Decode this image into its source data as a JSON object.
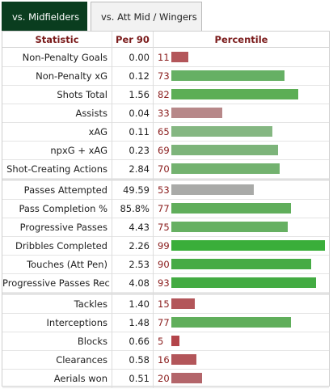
{
  "tabs": [
    {
      "label": "vs. Midfielders",
      "active": true
    },
    {
      "label": "vs. Att Mid / Wingers",
      "active": false
    }
  ],
  "headers": {
    "statistic": "Statistic",
    "per90": "Per 90",
    "percentile": "Percentile"
  },
  "colors": {
    "tab_active": "#0a3d1f",
    "header_text": "#7a1a1a",
    "percentile_text": "#8a1c1c"
  },
  "groups": [
    [
      {
        "stat": "Non-Penalty Goals",
        "per90": "0.00",
        "percentile": "11",
        "pct_value": 11,
        "color": "#b3565a"
      },
      {
        "stat": "Non-Penalty xG",
        "per90": "0.12",
        "percentile": "73",
        "pct_value": 73,
        "color": "#66b064"
      },
      {
        "stat": "Shots Total",
        "per90": "1.56",
        "percentile": "82",
        "pct_value": 82,
        "color": "#5cae55"
      },
      {
        "stat": "Assists",
        "per90": "0.04",
        "percentile": "33",
        "pct_value": 33,
        "color": "#b78889"
      },
      {
        "stat": "xAG",
        "per90": "0.11",
        "percentile": "65",
        "pct_value": 65,
        "color": "#85b782"
      },
      {
        "stat": "npxG + xAG",
        "per90": "0.23",
        "percentile": "69",
        "pct_value": 69,
        "color": "#7db47a"
      },
      {
        "stat": "Shot-Creating Actions",
        "per90": "2.84",
        "percentile": "70",
        "pct_value": 70,
        "color": "#73b26f"
      }
    ],
    [
      {
        "stat": "Passes Attempted",
        "per90": "49.59",
        "percentile": "53",
        "pct_value": 53,
        "color": "#a9aaa8"
      },
      {
        "stat": "Pass Completion %",
        "per90": "85.8%",
        "percentile": "77",
        "pct_value": 77,
        "color": "#60ae5b"
      },
      {
        "stat": "Progressive Passes",
        "per90": "4.43",
        "percentile": "75",
        "pct_value": 75,
        "color": "#66b062"
      },
      {
        "stat": "Dribbles Completed",
        "per90": "2.26",
        "percentile": "99",
        "pct_value": 99,
        "color": "#3aae3a"
      },
      {
        "stat": "Touches (Att Pen)",
        "per90": "2.53",
        "percentile": "90",
        "pct_value": 90,
        "color": "#46ab45"
      },
      {
        "stat": "Progressive Passes Rec",
        "per90": "4.08",
        "percentile": "93",
        "pct_value": 93,
        "color": "#43ab42"
      }
    ],
    [
      {
        "stat": "Tackles",
        "per90": "1.40",
        "percentile": "15",
        "pct_value": 15,
        "color": "#b3565a"
      },
      {
        "stat": "Interceptions",
        "per90": "1.48",
        "percentile": "77",
        "pct_value": 77,
        "color": "#60ae5b"
      },
      {
        "stat": "Blocks",
        "per90": "0.66",
        "percentile": "5",
        "pct_value": 5,
        "color": "#b3444a"
      },
      {
        "stat": "Clearances",
        "per90": "0.58",
        "percentile": "16",
        "pct_value": 16,
        "color": "#b3565a"
      },
      {
        "stat": "Aerials won",
        "per90": "0.51",
        "percentile": "20",
        "pct_value": 20,
        "color": "#b3656a"
      }
    ]
  ]
}
